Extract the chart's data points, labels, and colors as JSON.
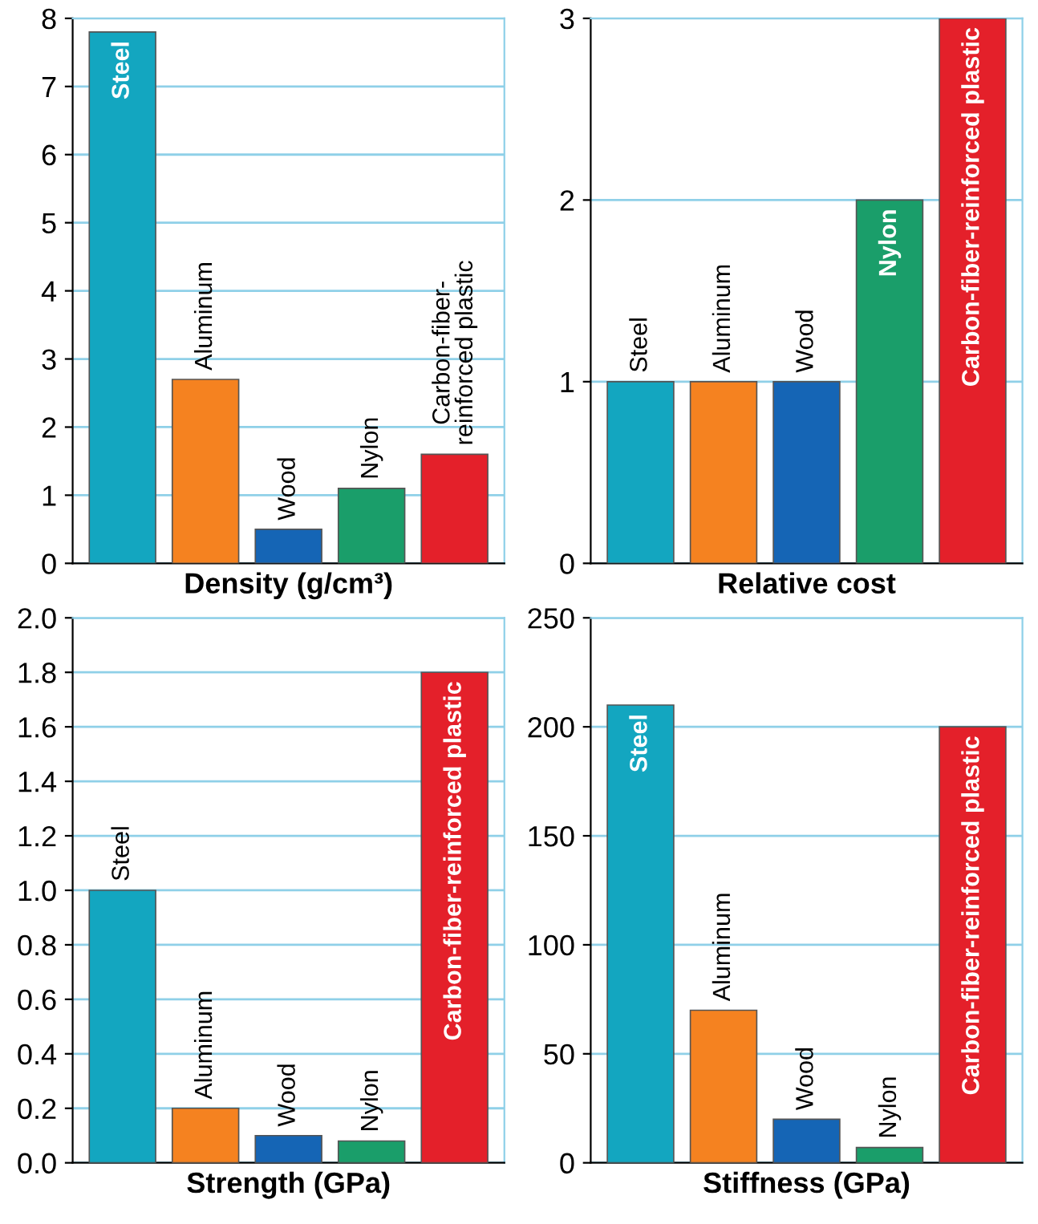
{
  "chart_data": [
    {
      "type": "bar",
      "xlabel": "Density (g/cm³)",
      "categories": [
        "Steel",
        "Aluminum",
        "Wood",
        "Nylon",
        "Carbon-fiber-\nreinforced plastic"
      ],
      "values": [
        7.8,
        2.7,
        0.5,
        1.1,
        1.6
      ],
      "colors": [
        "#13a6c0",
        "#f58220",
        "#1565b5",
        "#1a9e6a",
        "#e4202a"
      ],
      "ylim": [
        0,
        8
      ],
      "yticks": [
        0,
        1,
        2,
        3,
        4,
        5,
        6,
        7,
        8
      ],
      "grid": "y",
      "tick_labels": "y"
    },
    {
      "type": "bar",
      "xlabel": "Relative cost",
      "categories": [
        "Steel",
        "Aluminum",
        "Wood",
        "Nylon",
        "Carbon-fiber-reinforced plastic"
      ],
      "values": [
        1,
        1,
        1,
        2,
        3
      ],
      "colors": [
        "#13a6c0",
        "#f58220",
        "#1565b5",
        "#1a9e6a",
        "#e4202a"
      ],
      "ylim": [
        0,
        3
      ],
      "yticks": [
        0,
        1,
        2,
        3
      ],
      "grid": "y",
      "tick_labels": "y"
    },
    {
      "type": "bar",
      "xlabel": "Strength (GPa)",
      "categories": [
        "Steel",
        "Aluminum",
        "Wood",
        "Nylon",
        "Carbon-fiber-reinforced plastic"
      ],
      "values": [
        1.0,
        0.2,
        0.1,
        0.08,
        1.8
      ],
      "colors": [
        "#13a6c0",
        "#f58220",
        "#1565b5",
        "#1a9e6a",
        "#e4202a"
      ],
      "ylim": [
        0,
        2
      ],
      "yticks": [
        {
          "value": 0,
          "label": "0.0"
        },
        {
          "value": 0.2,
          "label": "0.2"
        },
        {
          "value": 0.4,
          "label": "0.4"
        },
        {
          "value": 0.6,
          "label": "0.6"
        },
        {
          "value": 0.8,
          "label": "0.8"
        },
        {
          "value": 1.0,
          "label": "1.0"
        },
        {
          "value": 1.2,
          "label": "1.2"
        },
        {
          "value": 1.4,
          "label": "1.4"
        },
        {
          "value": 1.6,
          "label": "1.6"
        },
        {
          "value": 1.8,
          "label": "1.8"
        },
        {
          "value": 2.0,
          "label": "2.0"
        }
      ],
      "grid": "y",
      "tick_labels": "y"
    },
    {
      "type": "bar",
      "xlabel": "Stiffness (GPa)",
      "categories": [
        "Steel",
        "Aluminum",
        "Wood",
        "Nylon",
        "Carbon-fiber-reinforced plastic"
      ],
      "values": [
        210,
        70,
        20,
        7,
        200
      ],
      "colors": [
        "#13a6c0",
        "#f58220",
        "#1565b5",
        "#1a9e6a",
        "#e4202a"
      ],
      "ylim": [
        0,
        250
      ],
      "yticks": [
        0,
        50,
        100,
        150,
        200,
        250
      ],
      "grid": "y",
      "tick_labels": "y"
    }
  ]
}
